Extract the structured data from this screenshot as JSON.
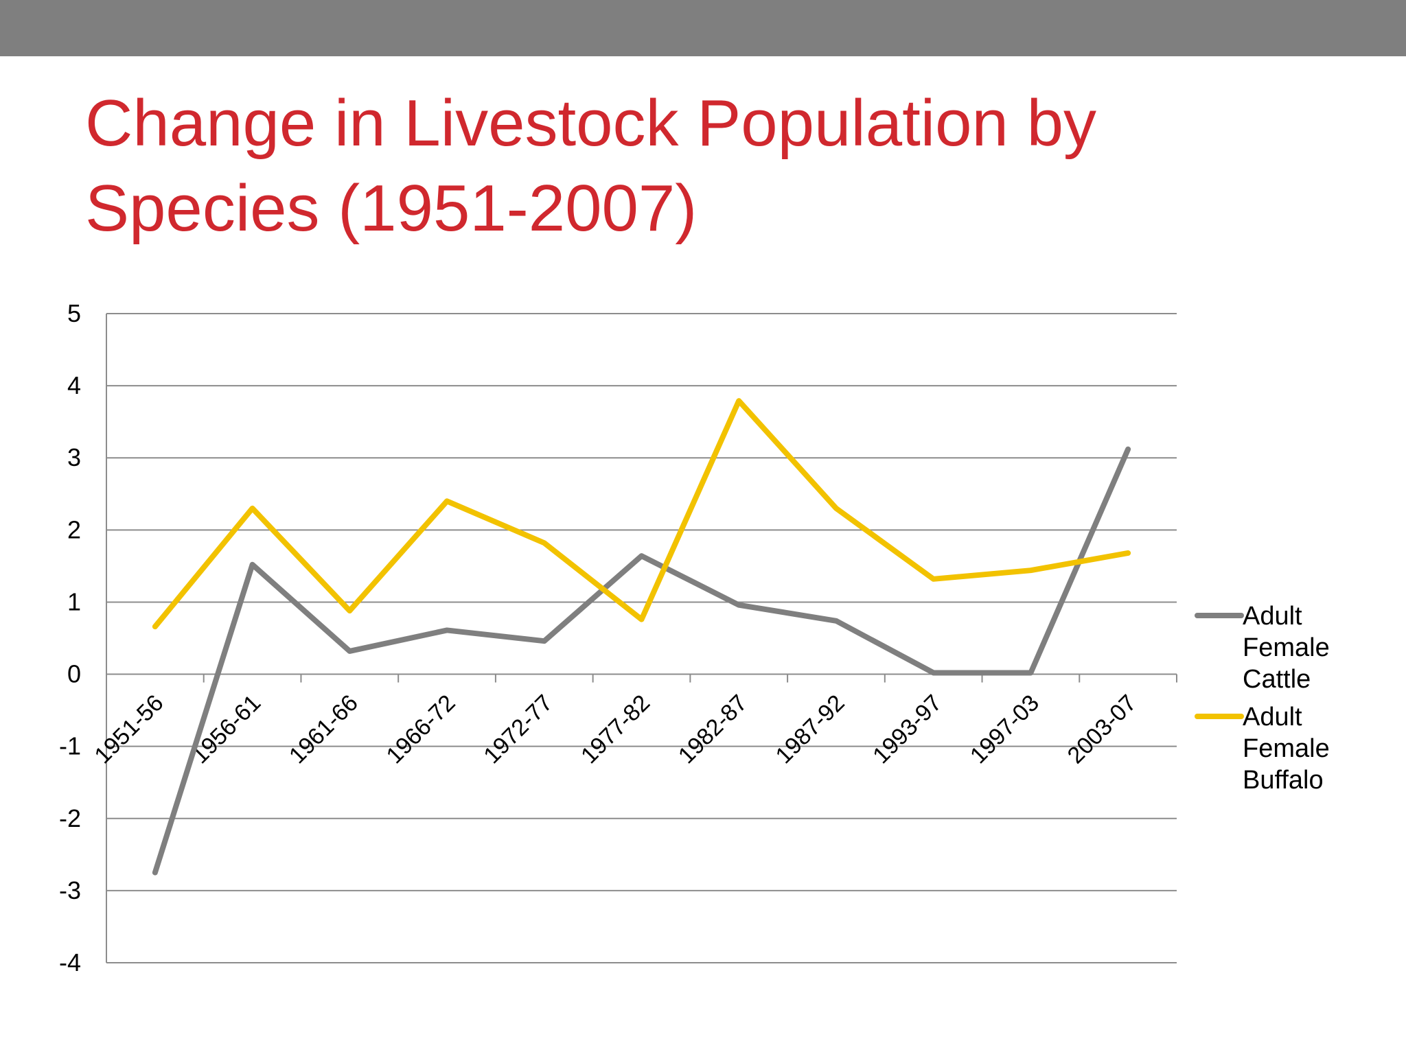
{
  "slide": {
    "title": "Change in Livestock Population by Species (1951-2007)"
  },
  "chart_data": {
    "type": "line",
    "title": "",
    "xlabel": "",
    "ylabel": "",
    "categories": [
      "1951-56",
      "1956-61",
      "1961-66",
      "1966-72",
      "1972-77",
      "1977-82",
      "1982-87",
      "1987-92",
      "1993-97",
      "1997-03",
      "2003-07"
    ],
    "ylim": [
      -4,
      5
    ],
    "yticks": [
      5,
      4,
      3,
      2,
      1,
      0,
      -1,
      -2,
      -3,
      -4
    ],
    "grid": true,
    "legend": "right",
    "series": [
      {
        "name": "Adult Female Cattle",
        "color": "#7f7f7f",
        "values": [
          -2.75,
          1.52,
          0.32,
          0.61,
          0.46,
          1.64,
          0.96,
          0.74,
          0.02,
          0.02,
          3.12
        ]
      },
      {
        "name": "Adult Female Buffalo",
        "color": "#f2c200",
        "values": [
          0.66,
          2.3,
          0.88,
          2.4,
          1.82,
          0.76,
          3.79,
          2.3,
          1.32,
          1.44,
          1.68
        ]
      }
    ]
  },
  "colors": {
    "title": "#d0282e",
    "top_bar": "#7f7f7f",
    "gridline": "#8c8c8c"
  }
}
